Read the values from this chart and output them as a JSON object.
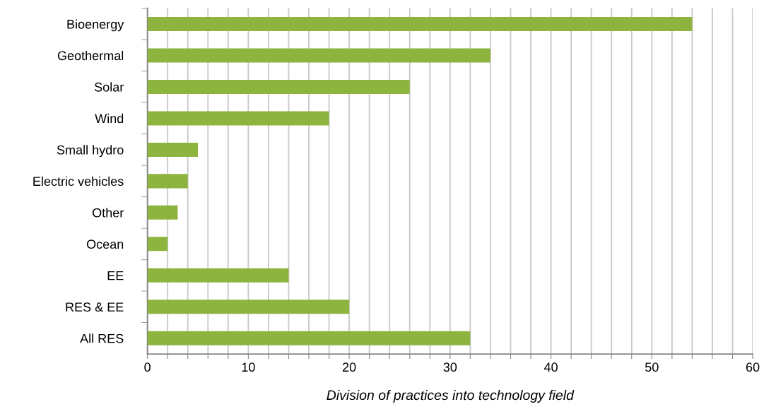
{
  "chart_data": {
    "type": "bar",
    "orientation": "horizontal",
    "xlabel": "Division of practices into technology field",
    "categories": [
      "Bioenergy",
      "Geothermal",
      "Solar",
      "Wind",
      "Small hydro",
      "Electric vehicles",
      "Other",
      "Ocean",
      "EE",
      "RES & EE",
      "All RES"
    ],
    "values": [
      54,
      34,
      26,
      18,
      5,
      4,
      3,
      2,
      14,
      20,
      32
    ],
    "color": "#8db43e",
    "xlim": [
      0,
      60
    ],
    "xticks": [
      0,
      {
        "value": 2,
        "label": null
      },
      {
        "value": 4,
        "label": null
      },
      {
        "value": 6,
        "label": null
      },
      {
        "value": 8,
        "label": null
      },
      10,
      {
        "value": 12,
        "label": null
      },
      {
        "value": 14,
        "label": null
      },
      {
        "value": 16,
        "label": null
      },
      {
        "value": 18,
        "label": null
      },
      20,
      {
        "value": 22,
        "label": null
      },
      {
        "value": 24,
        "label": null
      },
      {
        "value": 26,
        "label": null
      },
      {
        "value": 28,
        "label": null
      },
      30,
      {
        "value": 32,
        "label": null
      },
      {
        "value": 34,
        "label": null
      },
      {
        "value": 36,
        "label": null
      },
      {
        "value": 38,
        "label": null
      },
      40,
      {
        "value": 42,
        "label": null
      },
      {
        "value": 44,
        "label": null
      },
      {
        "value": 46,
        "label": null
      },
      {
        "value": 48,
        "label": null
      },
      50,
      {
        "value": 52,
        "label": null
      },
      {
        "value": 54,
        "label": null
      },
      {
        "value": 56,
        "label": null
      },
      {
        "value": 58,
        "label": null
      },
      60
    ],
    "grid": "x"
  }
}
